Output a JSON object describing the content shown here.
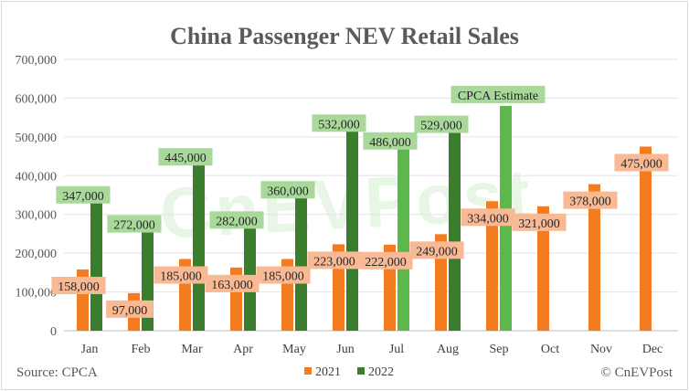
{
  "chart_data": {
    "type": "bar",
    "title": "China Passenger NEV Retail Sales",
    "categories": [
      "Jan",
      "Feb",
      "Mar",
      "Apr",
      "May",
      "Jun",
      "Jul",
      "Aug",
      "Sep",
      "Oct",
      "Nov",
      "Dec"
    ],
    "series": [
      {
        "name": "2021",
        "color": "#f47c20",
        "label_bg": "#f8b995",
        "values": [
          158000,
          97000,
          185000,
          163000,
          185000,
          223000,
          222000,
          249000,
          334000,
          321000,
          378000,
          475000
        ],
        "labels": [
          "158,000",
          "97,000",
          "185,000",
          "163,000",
          "185,000",
          "223,000",
          "222,000",
          "249,000",
          "334,000",
          "321,000",
          "378,000",
          "475,000"
        ]
      },
      {
        "name": "2022",
        "color": "#3a7d2c",
        "estimate_color": "#5cb84a",
        "label_bg": "#a8d99a",
        "values": [
          347000,
          272000,
          445000,
          282000,
          360000,
          532000,
          486000,
          529000,
          580000,
          null,
          null,
          null
        ],
        "labels": [
          "347,000",
          "272,000",
          "445,000",
          "282,000",
          "360,000",
          "532,000",
          "486,000",
          "529,000",
          "",
          null,
          null,
          null
        ]
      }
    ],
    "estimate_months": [
      "Jul",
      "Sep"
    ],
    "annotation": "CPCA Estimate",
    "yticks": [
      "0",
      "100,000",
      "200,000",
      "300,000",
      "400,000",
      "500,000",
      "600,000",
      "700,000"
    ],
    "ylim": [
      0,
      700000
    ],
    "grid": true,
    "legend_position": "bottom"
  },
  "source": "Source: CPCA",
  "credit": "© CnEVPost",
  "watermark": "CnEVPost"
}
